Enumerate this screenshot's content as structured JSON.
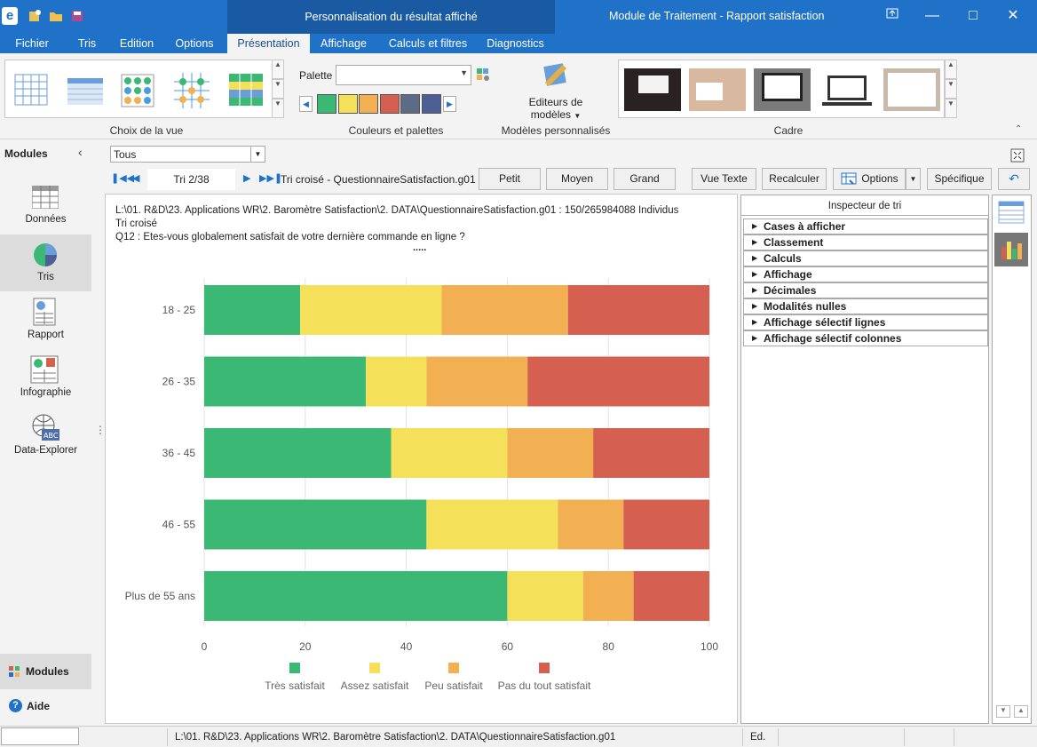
{
  "window": {
    "context_title": "Personnalisation du résultat affiché",
    "title": "Module de Traitement - Rapport satisfaction"
  },
  "tabs": [
    "Fichier",
    "Tris",
    "Edition",
    "Options",
    "Présentation",
    "Affichage",
    "Calculs et filtres",
    "Diagnostics"
  ],
  "ribbon": {
    "group_view": "Choix de la vue",
    "palette_label": "Palette",
    "group_colors": "Couleurs et palettes",
    "editors_label_1": "Editeurs de",
    "editors_label_2": "modèles",
    "group_models": "Modèles personnalisés",
    "group_frame": "Cadre",
    "palette_colors": [
      "#3bb873",
      "#f5e05a",
      "#f2b052",
      "#d5604f",
      "#5e6b86",
      "#4e5f95"
    ]
  },
  "sidebar": {
    "header": "Modules",
    "items": [
      "Données",
      "Tris",
      "Rapport",
      "Infographie",
      "Data-Explorer"
    ],
    "bottom_modules": "Modules",
    "help": "Aide"
  },
  "toolbar": {
    "filter_value": "Tous",
    "nav": "Tri 2/38",
    "table_name": "Tri croisé - QuestionnaireSatisfaction.g01",
    "petit": "Petit",
    "moyen": "Moyen",
    "grand": "Grand",
    "vue_texte": "Vue Texte",
    "recalculer": "Recalculer",
    "options": "Options",
    "specifique": "Spécifique"
  },
  "info": {
    "path": "L:\\01. R&D\\23. Applications WR\\2. Baromètre Satisfaction\\2. DATA\\QuestionnaireSatisfaction.g01 : 150/265984088 Individus",
    "type": "Tri croisé",
    "question": "Q12 : Etes-vous globalement satisfait de votre dernière commande en ligne ?",
    "dots": "....."
  },
  "chart_data": {
    "type": "bar",
    "orientation": "horizontal",
    "stacked": true,
    "categories": [
      "18 - 25",
      "26 - 35",
      "36 - 45",
      "46 - 55",
      "Plus de 55 ans"
    ],
    "series": [
      {
        "name": "Très satisfait",
        "color": "#3bb873",
        "values": [
          19,
          32,
          37,
          44,
          60
        ]
      },
      {
        "name": "Assez satisfait",
        "color": "#f5e05a",
        "values": [
          28,
          12,
          23,
          26,
          15
        ]
      },
      {
        "name": "Peu satisfait",
        "color": "#f2b052",
        "values": [
          25,
          20,
          17,
          13,
          10
        ]
      },
      {
        "name": "Pas du tout satisfait",
        "color": "#d5604f",
        "values": [
          28,
          36,
          23,
          17,
          15
        ]
      }
    ],
    "xlim": [
      0,
      100
    ],
    "xticks": [
      "0",
      "20",
      "40",
      "60",
      "80",
      "100"
    ],
    "grid": true,
    "legend": "bottom"
  },
  "inspector": {
    "title": "Inspecteur de tri",
    "rows": [
      "Cases à afficher",
      "Classement",
      "Calculs",
      "Affichage",
      "Décimales",
      "Modalités nulles",
      "Affichage sélectif lignes",
      "Affichage sélectif colonnes"
    ]
  },
  "status": {
    "path": "L:\\01. R&D\\23. Applications WR\\2. Baromètre Satisfaction\\2. DATA\\QuestionnaireSatisfaction.g01",
    "mode": "Ed."
  }
}
